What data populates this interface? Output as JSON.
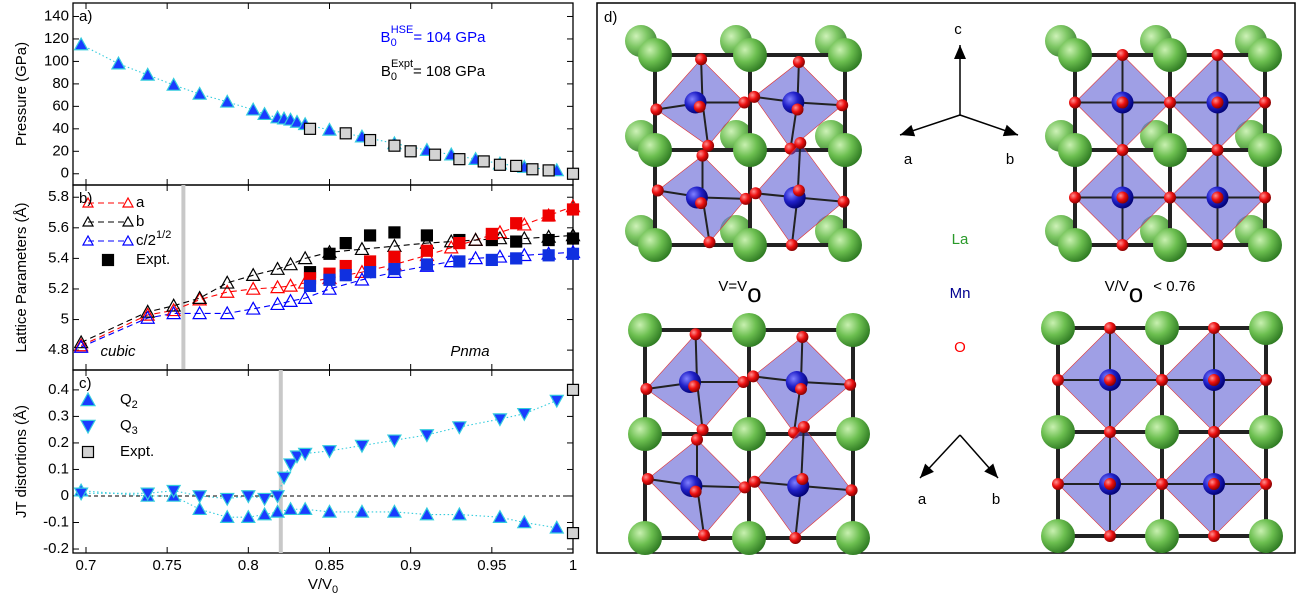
{
  "chart_data": [
    {
      "type": "scatter",
      "panel_label": "a)",
      "ylabel": "Pressure (GPa)",
      "xlim": [
        0.692,
        1.0
      ],
      "ylim": [
        -10,
        152
      ],
      "xticks": [
        0.7,
        0.75,
        0.8,
        0.85,
        0.9,
        0.95,
        1
      ],
      "xtick_labels": false,
      "yticks": [
        0,
        20,
        40,
        60,
        80,
        100,
        120,
        140
      ],
      "series": [
        {
          "marker": "triangle-up",
          "color": "#1a3cff",
          "edge": "#33ccdd",
          "line": "dotted",
          "x": [
            0.697,
            0.72,
            0.738,
            0.754,
            0.77,
            0.787,
            0.803,
            0.81,
            0.818,
            0.822,
            0.826,
            0.83,
            0.835,
            0.85,
            0.87,
            0.89,
            0.91,
            0.925,
            0.94,
            0.955,
            0.97,
            0.99
          ],
          "values": [
            115,
            98,
            88,
            79,
            71,
            64,
            57,
            53,
            50,
            49,
            48,
            46,
            44,
            39,
            33,
            27,
            21,
            17,
            13,
            9,
            6,
            3
          ]
        },
        {
          "marker": "square",
          "color": "#d3d3d3",
          "edge": "#000000",
          "x": [
            0.838,
            0.86,
            0.875,
            0.89,
            0.9,
            0.915,
            0.93,
            0.945,
            0.955,
            0.965,
            0.975,
            0.985,
            1.0
          ],
          "values": [
            40,
            36,
            30,
            25,
            20,
            17,
            13,
            11,
            8,
            7,
            4,
            3,
            0
          ]
        }
      ],
      "annotations": [
        {
          "parts": [
            "B",
            "0",
            "HSE",
            "= 104 GPa"
          ],
          "color": "#0000ff"
        },
        {
          "parts": [
            "B",
            "0",
            "Expt",
            "= 108 GPa"
          ],
          "color": "#000000"
        }
      ]
    },
    {
      "type": "scatter",
      "panel_label": "b)",
      "ylabel": "Lattice Parameters (Å)",
      "xlim": [
        0.692,
        1.0
      ],
      "ylim": [
        4.67,
        5.88
      ],
      "xticks": [
        0.7,
        0.75,
        0.8,
        0.85,
        0.9,
        0.95,
        1
      ],
      "xtick_labels": false,
      "yticks": [
        4.8,
        5,
        5.2,
        5.4,
        5.6,
        5.8
      ],
      "vlines": [
        0.76
      ],
      "legend": "upper left",
      "series": [
        {
          "name": "a",
          "marker": "triangle-up",
          "color": "#ff0000",
          "open": true,
          "line": "dashed",
          "x": [
            0.697,
            0.738,
            0.754,
            0.77,
            0.787,
            0.803,
            0.818,
            0.826,
            0.835,
            0.85,
            0.87,
            0.89,
            0.91,
            0.925,
            0.94,
            0.955,
            0.97,
            0.985,
            1.0
          ],
          "values": [
            4.83,
            5.03,
            5.06,
            5.13,
            5.18,
            5.2,
            5.21,
            5.22,
            5.24,
            5.27,
            5.31,
            5.36,
            5.42,
            5.47,
            5.52,
            5.57,
            5.62,
            5.68,
            5.74
          ]
        },
        {
          "name": "b",
          "marker": "triangle-up",
          "color": "#000000",
          "open": true,
          "line": "dashed",
          "x": [
            0.697,
            0.738,
            0.754,
            0.77,
            0.787,
            0.803,
            0.818,
            0.826,
            0.835,
            0.85,
            0.87,
            0.89,
            0.91,
            0.925,
            0.94,
            0.955,
            0.97,
            0.985,
            1.0
          ],
          "values": [
            4.85,
            5.05,
            5.09,
            5.14,
            5.24,
            5.29,
            5.33,
            5.36,
            5.4,
            5.44,
            5.46,
            5.48,
            5.5,
            5.51,
            5.52,
            5.53,
            5.53,
            5.54,
            5.55
          ]
        },
        {
          "name": "c/2",
          "name_sup": "1/2",
          "marker": "triangle-up",
          "color": "#0000ff",
          "open": true,
          "line": "dashed",
          "x": [
            0.697,
            0.738,
            0.754,
            0.77,
            0.787,
            0.803,
            0.818,
            0.826,
            0.835,
            0.85,
            0.87,
            0.89,
            0.91,
            0.925,
            0.94,
            0.955,
            0.97,
            0.985,
            1.0
          ],
          "values": [
            4.82,
            5.01,
            5.04,
            5.04,
            5.04,
            5.07,
            5.1,
            5.12,
            5.14,
            5.2,
            5.26,
            5.31,
            5.35,
            5.38,
            5.4,
            5.41,
            5.42,
            5.43,
            5.44
          ]
        },
        {
          "name": "Expt.",
          "marker": "square",
          "color": "#000000",
          "x": [
            0.838,
            0.85,
            0.86,
            0.875,
            0.89,
            0.91,
            0.93,
            0.95,
            0.965,
            0.985,
            1.0
          ],
          "values": [
            5.31,
            5.43,
            5.5,
            5.55,
            5.57,
            5.55,
            5.52,
            5.52,
            5.51,
            5.52,
            5.53
          ]
        },
        {
          "marker": "square",
          "color": "#ee0000",
          "x": [
            0.838,
            0.85,
            0.86,
            0.875,
            0.89,
            0.91,
            0.93,
            0.95,
            0.965,
            0.985,
            1.0
          ],
          "values": [
            5.27,
            5.3,
            5.35,
            5.38,
            5.41,
            5.45,
            5.5,
            5.56,
            5.63,
            5.68,
            5.72
          ]
        },
        {
          "marker": "square",
          "color": "#1030e0",
          "x": [
            0.838,
            0.85,
            0.86,
            0.875,
            0.89,
            0.91,
            0.93,
            0.95,
            0.965,
            0.985,
            1.0
          ],
          "values": [
            5.22,
            5.26,
            5.29,
            5.31,
            5.33,
            5.36,
            5.38,
            5.39,
            5.4,
            5.42,
            5.43
          ]
        }
      ],
      "annotations": [
        {
          "text": "cubic"
        },
        {
          "text": "Pnma"
        }
      ]
    },
    {
      "type": "scatter",
      "panel_label": "c)",
      "ylabel": "JT distortions (Å)",
      "xlabel": "V/V",
      "xlabel_sub": "0",
      "xlim": [
        0.692,
        1.0
      ],
      "ylim": [
        -0.215,
        0.475
      ],
      "xticks": [
        0.7,
        0.75,
        0.8,
        0.85,
        0.9,
        0.95,
        1
      ],
      "xtick_labels": true,
      "yticks": [
        -0.2,
        -0.1,
        0,
        0.1,
        0.2,
        0.3,
        0.4
      ],
      "vlines": [
        0.82
      ],
      "hlines": [
        0
      ],
      "legend": "upper left",
      "series": [
        {
          "name": "Q",
          "name_sub": "2",
          "marker": "triangle-up",
          "color": "#1a3cff",
          "edge": "#33ccdd",
          "line": "dotted",
          "x": [
            0.697,
            0.738,
            0.754,
            0.77,
            0.787,
            0.8,
            0.81,
            0.818,
            0.826,
            0.835,
            0.85,
            0.87,
            0.89,
            0.91,
            0.93,
            0.955,
            0.97,
            0.99
          ],
          "values": [
            0.02,
            0.0,
            0.0,
            -0.05,
            -0.08,
            -0.08,
            -0.07,
            -0.06,
            -0.05,
            -0.05,
            -0.06,
            -0.06,
            -0.06,
            -0.07,
            -0.07,
            -0.08,
            -0.1,
            -0.12
          ]
        },
        {
          "name": "Q",
          "name_sub": "3",
          "marker": "triangle-down",
          "color": "#1a3cff",
          "edge": "#33ccdd",
          "line": "dotted",
          "x": [
            0.697,
            0.738,
            0.754,
            0.77,
            0.787,
            0.8,
            0.81,
            0.818,
            0.822,
            0.826,
            0.83,
            0.835,
            0.85,
            0.87,
            0.89,
            0.91,
            0.93,
            0.955,
            0.97,
            0.99
          ],
          "values": [
            0.01,
            0.01,
            0.02,
            0.0,
            -0.01,
            0.0,
            -0.01,
            0.0,
            0.07,
            0.12,
            0.15,
            0.16,
            0.17,
            0.19,
            0.21,
            0.23,
            0.26,
            0.29,
            0.31,
            0.36
          ]
        },
        {
          "name": "Expt.",
          "marker": "square",
          "color": "#d3d3d3",
          "edge": "#000000",
          "x": [
            1.0,
            1.0
          ],
          "values": [
            0.4,
            -0.14
          ]
        }
      ]
    }
  ],
  "diagram": {
    "label": "d)",
    "axes_top": [
      "c",
      "a",
      "b"
    ],
    "axes_bottom": [
      "a",
      "b"
    ],
    "caption_left": {
      "text": "V=V",
      "sub": "o"
    },
    "caption_right": {
      "text": "V/V",
      "sub": "o",
      "rest": "< 0.76"
    },
    "elements": [
      {
        "text": "La",
        "color": "#2a9a2a"
      },
      {
        "text": "Mn",
        "color": "#000090"
      },
      {
        "text": "O",
        "color": "#ff0000"
      }
    ]
  }
}
